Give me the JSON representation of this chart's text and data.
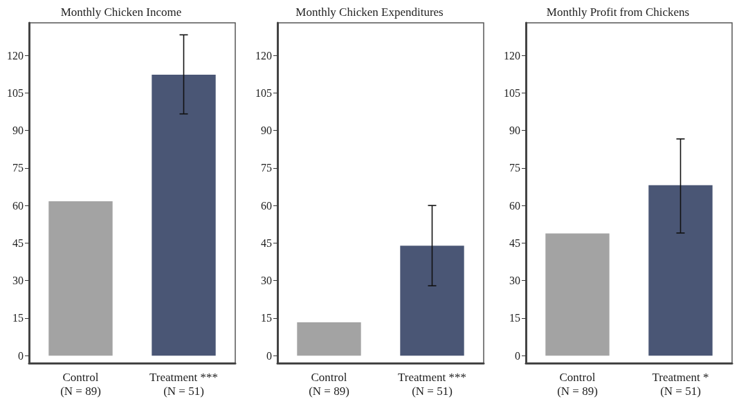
{
  "chart_data": [
    {
      "type": "bar",
      "title": "Monthly Chicken Income",
      "categories": [
        "Control\n(N = 89)",
        "Treatment ***\n(N = 51)"
      ],
      "values": [
        61.7,
        112.3
      ],
      "colors": [
        "#a3a3a3",
        "#4a5675"
      ],
      "errors": [
        null,
        [
          96.6,
          128.2
        ]
      ],
      "ylim": [
        -3,
        133
      ],
      "yticks": [
        0,
        15,
        30,
        45,
        60,
        75,
        90,
        105,
        120
      ],
      "grid": false
    },
    {
      "type": "bar",
      "title": "Monthly Chicken Expenditures",
      "categories": [
        "Control\n(N = 89)",
        "Treatment ***\n(N = 51)"
      ],
      "values": [
        13.3,
        43.9
      ],
      "colors": [
        "#a3a3a3",
        "#4a5675"
      ],
      "errors": [
        null,
        [
          27.9,
          60
        ]
      ],
      "ylim": [
        -3,
        133
      ],
      "yticks": [
        0,
        15,
        30,
        45,
        60,
        75,
        90,
        105,
        120
      ],
      "grid": false
    },
    {
      "type": "bar",
      "title": "Monthly Profit from Chickens",
      "categories": [
        "Control\n(N = 89)",
        "Treatment *\n(N = 51)"
      ],
      "values": [
        48.8,
        68.1
      ],
      "colors": [
        "#a3a3a3",
        "#4a5675"
      ],
      "errors": [
        null,
        [
          49,
          86.6
        ]
      ],
      "ylim": [
        -3,
        133
      ],
      "yticks": [
        0,
        15,
        30,
        45,
        60,
        75,
        90,
        105,
        120
      ],
      "grid": false
    }
  ]
}
